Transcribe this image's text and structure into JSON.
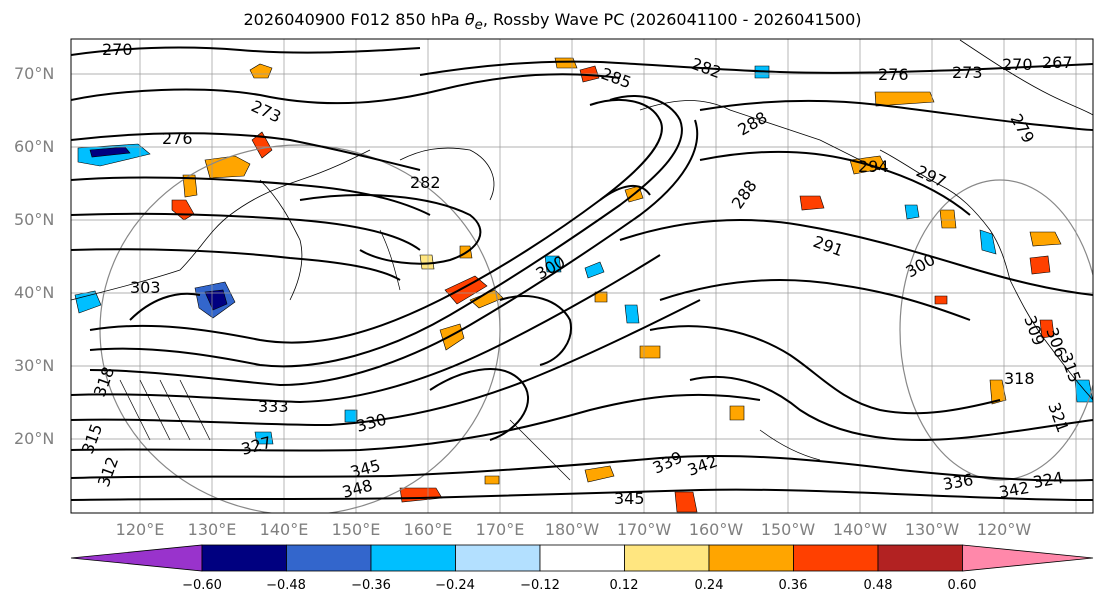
{
  "title": {
    "run": "2026040900 F012 850 hPa",
    "variable": "θ",
    "variable_sub": "e",
    "rest": ", Rossby Wave PC (2026041100 - 2026041500)"
  },
  "map": {
    "projection": "PlateCarree",
    "extent_lon": [
      110,
      255
    ],
    "extent_lat": [
      10,
      75
    ],
    "lat_labels": [
      "70°N",
      "60°N",
      "50°N",
      "40°N",
      "30°N",
      "20°N"
    ],
    "lon_labels": [
      "120°E",
      "130°E",
      "140°E",
      "150°E",
      "160°E",
      "170°E",
      "180°W",
      "170°W",
      "160°W",
      "150°W",
      "140°W",
      "130°W",
      "120°W"
    ],
    "contour_labels": [
      "270",
      "276",
      "273",
      "282",
      "285",
      "288",
      "276",
      "273",
      "270",
      "267",
      "279",
      "282",
      "288",
      "294",
      "297",
      "291",
      "300",
      "303",
      "300",
      "309",
      "306",
      "315",
      "318",
      "321",
      "333",
      "330",
      "327",
      "345",
      "348",
      "339",
      "342",
      "345",
      "336",
      "342",
      "324",
      "318",
      "315",
      "312"
    ]
  },
  "colorbar": {
    "colors": [
      "#9933cc",
      "#000080",
      "#3366cc",
      "#00bfff",
      "#b3e0ff",
      "#ffffff",
      "#ffe680",
      "#ffa500",
      "#ff4000",
      "#b22222",
      "#ff88aa"
    ],
    "ticks": [
      "−0.60",
      "−0.48",
      "−0.36",
      "−0.24",
      "−0.12",
      "0.12",
      "0.24",
      "0.36",
      "0.48",
      "0.60"
    ]
  }
}
